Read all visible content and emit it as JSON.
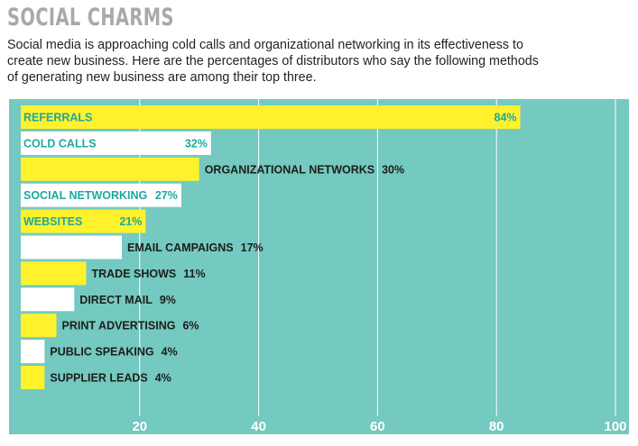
{
  "title": "SOCIAL CHARMS",
  "subtitle": "Social media is approaching cold calls and organizational networking in its effectiveness to create new business. Here are the percentages of distributors who say the following methods of generating new business are among their top three.",
  "colors": {
    "background": "#74c9c0",
    "bar_yellow": "#fff22d",
    "bar_white": "#ffffff",
    "label_teal": "#1fa89d",
    "label_dark": "#1d1d1b",
    "gridline": "#ffffff",
    "title_gray": "#a7a9ac"
  },
  "chart_data": {
    "type": "bar",
    "orientation": "horizontal",
    "categories": [
      "REFERRALS",
      "COLD CALLS",
      "ORGANIZATIONAL NETWORKS",
      "SOCIAL NETWORKING",
      "WEBSITES",
      "EMAIL CAMPAIGNS",
      "TRADE SHOWS",
      "DIRECT MAIL",
      "PRINT ADVERTISING",
      "PUBLIC SPEAKING",
      "SUPPLIER LEADS"
    ],
    "values": [
      84,
      32,
      30,
      27,
      21,
      17,
      11,
      9,
      6,
      4,
      4
    ],
    "value_labels": [
      "84%",
      "32%",
      "30%",
      "27%",
      "21%",
      "17%",
      "11%",
      "9%",
      "6%",
      "4%",
      "4%"
    ],
    "bar_colors": [
      "yellow",
      "white",
      "yellow",
      "white",
      "yellow",
      "white",
      "yellow",
      "white",
      "yellow",
      "white",
      "yellow"
    ],
    "xlim": [
      0,
      100
    ],
    "xticks": [
      20,
      40,
      60,
      80,
      100
    ],
    "xtick_labels": [
      "20",
      "40",
      "60",
      "80",
      "100"
    ],
    "grid": true
  }
}
